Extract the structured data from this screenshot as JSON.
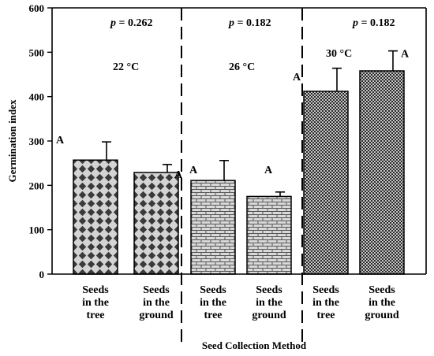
{
  "chart_data": {
    "type": "bar",
    "title": "",
    "xlabel": "Seed Collection Method",
    "ylabel": "Germination index",
    "ylim": [
      0,
      600
    ],
    "yticks": [
      0,
      100,
      200,
      300,
      400,
      500,
      600
    ],
    "grid": false,
    "legend": "none",
    "groups": [
      {
        "temperature": "22 °C",
        "p_label": "p",
        "p_value": " = 0.262",
        "pattern": "diamond",
        "bars": [
          {
            "category": [
              "Seeds",
              "in the",
              "tree"
            ],
            "value": 257,
            "error": 41,
            "letter": "A"
          },
          {
            "category": [
              "Seeds",
              "in the",
              "ground"
            ],
            "value": 229,
            "error": 18,
            "letter": "A"
          }
        ]
      },
      {
        "temperature": "26 °C",
        "p_label": "p",
        "p_value": " = 0.182",
        "pattern": "brick",
        "bars": [
          {
            "category": [
              "Seeds",
              "in the",
              "tree"
            ],
            "value": 211,
            "error": 45,
            "letter": "A"
          },
          {
            "category": [
              "Seeds",
              "in the",
              "ground"
            ],
            "value": 175,
            "error": 10,
            "letter": "A"
          }
        ]
      },
      {
        "temperature": "30 °C",
        "p_label": "p",
        "p_value": " = 0.182",
        "pattern": "dense-grid",
        "bars": [
          {
            "category": [
              "Seeds",
              "in the",
              "tree"
            ],
            "value": 412,
            "error": 52,
            "letter": "A"
          },
          {
            "category": [
              "Seeds",
              "in the",
              "ground"
            ],
            "value": 458,
            "error": 45,
            "letter": "A"
          }
        ]
      }
    ]
  },
  "colors": {
    "axis": "#000000",
    "diamond_bg": "#d4d4d4",
    "diamond_fg": "#3a3a3a",
    "brick_bg": "#d9d9d9",
    "brick_fg": "#555555",
    "grid_bg": "#c6c6c6",
    "grid_fg": "#2a2a2a"
  }
}
